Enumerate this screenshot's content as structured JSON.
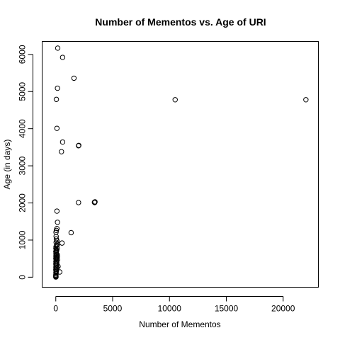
{
  "chart_data": {
    "type": "scatter",
    "title": "Number of Mementos vs. Age of URI",
    "xlabel": "Number of Mementos",
    "ylabel": "Age (in days)",
    "xlim": [
      -1200,
      23100
    ],
    "ylim": [
      -270,
      6350
    ],
    "x_ticks": [
      0,
      5000,
      10000,
      15000,
      20000
    ],
    "y_ticks": [
      0,
      1000,
      2000,
      3000,
      4000,
      5000,
      6000
    ],
    "grid": false,
    "legend": "none",
    "points": [
      {
        "x": 170,
        "y": 6170
      },
      {
        "x": 600,
        "y": 5920
      },
      {
        "x": 1600,
        "y": 5360
      },
      {
        "x": 150,
        "y": 5090
      },
      {
        "x": 50,
        "y": 4790
      },
      {
        "x": 10500,
        "y": 4780
      },
      {
        "x": 22000,
        "y": 4780
      },
      {
        "x": 100,
        "y": 4010
      },
      {
        "x": 600,
        "y": 3640
      },
      {
        "x": 2000,
        "y": 3540
      },
      {
        "x": 2020,
        "y": 3550
      },
      {
        "x": 500,
        "y": 3380
      },
      {
        "x": 2000,
        "y": 2010
      },
      {
        "x": 3400,
        "y": 2020
      },
      {
        "x": 3450,
        "y": 2030
      },
      {
        "x": 3420,
        "y": 2010
      },
      {
        "x": 100,
        "y": 1780
      },
      {
        "x": 150,
        "y": 1480
      },
      {
        "x": 100,
        "y": 1310
      },
      {
        "x": 50,
        "y": 1260
      },
      {
        "x": 20,
        "y": 1210
      },
      {
        "x": 1350,
        "y": 1200
      },
      {
        "x": 50,
        "y": 1030
      },
      {
        "x": 100,
        "y": 980
      },
      {
        "x": 30,
        "y": 940
      },
      {
        "x": 550,
        "y": 920
      },
      {
        "x": 150,
        "y": 890
      },
      {
        "x": 60,
        "y": 850
      },
      {
        "x": 20,
        "y": 820
      },
      {
        "x": 10,
        "y": 780
      },
      {
        "x": 40,
        "y": 750
      },
      {
        "x": 80,
        "y": 720
      },
      {
        "x": 5,
        "y": 690
      },
      {
        "x": 30,
        "y": 660
      },
      {
        "x": 15,
        "y": 630
      },
      {
        "x": 70,
        "y": 600
      },
      {
        "x": 10,
        "y": 570
      },
      {
        "x": 40,
        "y": 540
      },
      {
        "x": 5,
        "y": 510
      },
      {
        "x": 25,
        "y": 480
      },
      {
        "x": 60,
        "y": 450
      },
      {
        "x": 10,
        "y": 420
      },
      {
        "x": 35,
        "y": 390
      },
      {
        "x": 5,
        "y": 360
      },
      {
        "x": 20,
        "y": 330
      },
      {
        "x": 50,
        "y": 300
      },
      {
        "x": 200,
        "y": 290
      },
      {
        "x": 10,
        "y": 270
      },
      {
        "x": 30,
        "y": 240
      },
      {
        "x": 5,
        "y": 210
      },
      {
        "x": 15,
        "y": 180
      },
      {
        "x": 40,
        "y": 150
      },
      {
        "x": 350,
        "y": 140
      },
      {
        "x": 8,
        "y": 120
      },
      {
        "x": 25,
        "y": 90
      },
      {
        "x": 5,
        "y": 60
      },
      {
        "x": 12,
        "y": 40
      },
      {
        "x": 3,
        "y": 20
      },
      {
        "x": 20,
        "y": 10
      },
      {
        "x": 2,
        "y": 5
      },
      {
        "x": 60,
        "y": 180
      },
      {
        "x": 80,
        "y": 520
      },
      {
        "x": 90,
        "y": 380
      },
      {
        "x": 45,
        "y": 700
      },
      {
        "x": 120,
        "y": 610
      },
      {
        "x": 150,
        "y": 470
      },
      {
        "x": 100,
        "y": 250
      },
      {
        "x": 70,
        "y": 330
      },
      {
        "x": 130,
        "y": 780
      },
      {
        "x": 30,
        "y": 1100
      },
      {
        "x": 90,
        "y": 860
      },
      {
        "x": 140,
        "y": 560
      }
    ]
  }
}
